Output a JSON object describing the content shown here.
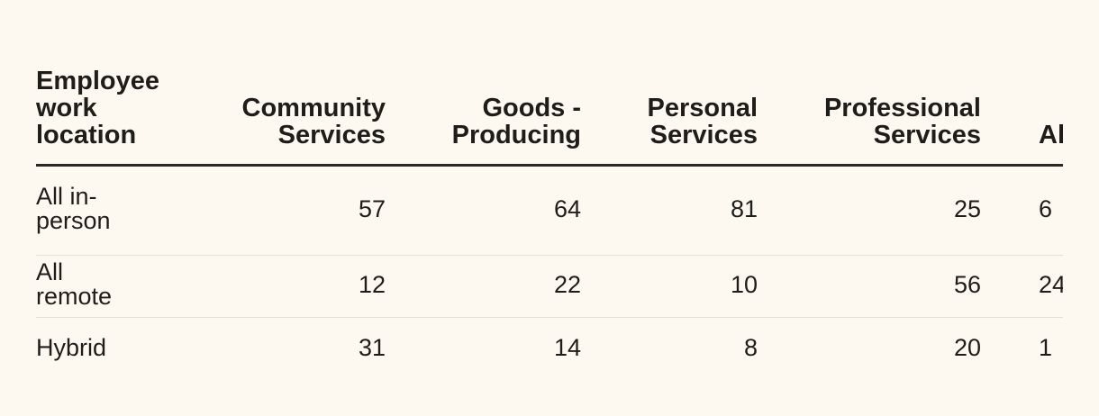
{
  "table": {
    "columns": [
      "Employee work location",
      "Community Services",
      "Goods - Producing",
      "Personal Services",
      "Professional Services",
      "Al"
    ],
    "rows": [
      [
        "All in-person",
        57,
        64,
        81,
        25,
        "6"
      ],
      [
        "All remote",
        12,
        22,
        10,
        56,
        "24"
      ],
      [
        "Hybrid",
        31,
        14,
        8,
        20,
        "1"
      ]
    ]
  }
}
